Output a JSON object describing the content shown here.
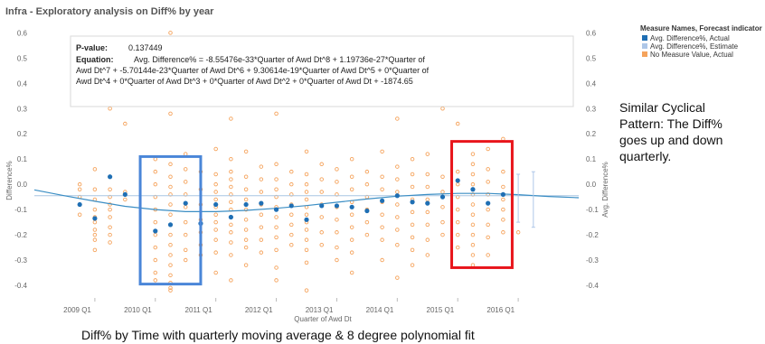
{
  "chart_data": {
    "type": "scatter",
    "title": "Infra - Exploratory analysis on Diff% by year",
    "xlabel": "Quarter of Awd Dt",
    "ylabel": "Difference%",
    "y2label": "Avg. Difference%",
    "ylim": [
      -0.45,
      0.63
    ],
    "xlim": [
      2008.0,
      2017.0
    ],
    "yticks": [
      "0.6",
      "0.5",
      "0.4",
      "0.3",
      "0.2",
      "0.1",
      "0.0",
      "-0.1",
      "-0.2",
      "-0.3",
      "-0.4"
    ],
    "xticks": [
      "2009 Q1",
      "2010 Q1",
      "2011 Q1",
      "2012 Q1",
      "2013 Q1",
      "2014 Q1",
      "2015 Q1",
      "2016 Q1"
    ],
    "grid": false,
    "legend": {
      "placement": "top-right",
      "title": "Measure Names, Forecast indicator",
      "entries": [
        {
          "label": "Avg. Difference%, Actual",
          "color": "#1f6fb4"
        },
        {
          "label": "Avg. Difference%, Estimate",
          "color": "#aec7e8"
        },
        {
          "label": "No Measure Value, Actual",
          "color": "#f5a35c"
        }
      ]
    },
    "trend": {
      "p_value_label": "P-value:",
      "p_value": "0.137449",
      "equation_label": "Equation:",
      "equation_lines": [
        "Avg. Difference% = -8.55476e-33*Quarter of Awd Dt^8 + 1.19736e-27*Quarter of",
        "Awd Dt^7 + -5.70144e-23*Quarter of Awd Dt^6 + 9.30614e-19*Quarter of Awd Dt^5 + 0*Quarter of",
        "Awd Dt^4 + 0*Quarter of Awd Dt^3 + 0*Quarter of Awd Dt^2 + 0*Quarter of Awd Dt + -1874.65"
      ],
      "fit_curve": [
        [
          2008.0,
          -0.022
        ],
        [
          2008.5,
          -0.045
        ],
        [
          2009.0,
          -0.067
        ],
        [
          2009.5,
          -0.087
        ],
        [
          2010.0,
          -0.1
        ],
        [
          2010.5,
          -0.108
        ],
        [
          2011.0,
          -0.108
        ],
        [
          2011.5,
          -0.103
        ],
        [
          2012.0,
          -0.095
        ],
        [
          2012.5,
          -0.084
        ],
        [
          2013.0,
          -0.071
        ],
        [
          2013.5,
          -0.058
        ],
        [
          2014.0,
          -0.047
        ],
        [
          2014.5,
          -0.04
        ],
        [
          2015.0,
          -0.036
        ],
        [
          2015.5,
          -0.036
        ],
        [
          2016.0,
          -0.041
        ],
        [
          2016.5,
          -0.048
        ],
        [
          2017.0,
          -0.053
        ]
      ]
    },
    "avg_line_y": -0.045,
    "avg_actual": [
      [
        2008.75,
        -0.08
      ],
      [
        2009.0,
        -0.135
      ],
      [
        2009.25,
        0.03
      ],
      [
        2009.5,
        -0.04
      ],
      [
        2010.0,
        -0.185
      ],
      [
        2010.25,
        -0.16
      ],
      [
        2010.5,
        -0.075
      ],
      [
        2010.75,
        -0.155
      ],
      [
        2011.0,
        -0.08
      ],
      [
        2011.25,
        -0.13
      ],
      [
        2011.5,
        -0.08
      ],
      [
        2011.75,
        -0.075
      ],
      [
        2012.0,
        -0.1
      ],
      [
        2012.25,
        -0.085
      ],
      [
        2012.5,
        -0.14
      ],
      [
        2012.75,
        -0.085
      ],
      [
        2013.0,
        -0.085
      ],
      [
        2013.25,
        -0.09
      ],
      [
        2013.5,
        -0.105
      ],
      [
        2013.75,
        -0.065
      ],
      [
        2014.0,
        -0.045
      ],
      [
        2014.25,
        -0.07
      ],
      [
        2014.5,
        -0.075
      ],
      [
        2014.75,
        -0.05
      ],
      [
        2015.0,
        0.015
      ],
      [
        2015.25,
        -0.02
      ],
      [
        2015.5,
        -0.075
      ],
      [
        2015.75,
        -0.04
      ]
    ],
    "estimate_intervals": [
      {
        "x": 2016.0,
        "low": -0.15,
        "high": 0.04
      },
      {
        "x": 2016.25,
        "low": -0.17,
        "high": 0.05
      }
    ],
    "points_per_quarter": [
      {
        "x": 2008.75,
        "values": [
          -0.02,
          -0.05,
          -0.08,
          -0.12,
          0.0
        ]
      },
      {
        "x": 2009.0,
        "values": [
          0.06,
          -0.02,
          -0.06,
          -0.1,
          -0.13,
          -0.15,
          -0.18,
          -0.2,
          -0.22,
          -0.26
        ]
      },
      {
        "x": 2009.25,
        "values": [
          0.3,
          0.03,
          -0.02,
          -0.05,
          -0.08,
          -0.1,
          -0.13,
          -0.17,
          -0.2,
          -0.23
        ]
      },
      {
        "x": 2009.5,
        "values": [
          0.24,
          -0.03,
          -0.06
        ]
      },
      {
        "x": 2010.0,
        "values": [
          0.1,
          0.05,
          0.0,
          -0.05,
          -0.1,
          -0.15,
          -0.2,
          -0.25,
          -0.3,
          -0.35,
          -0.38
        ]
      },
      {
        "x": 2010.25,
        "values": [
          0.6,
          0.28,
          0.08,
          0.03,
          -0.01,
          -0.04,
          -0.08,
          -0.12,
          -0.16,
          -0.2,
          -0.24,
          -0.28,
          -0.32,
          -0.36,
          -0.39,
          -0.41,
          -0.42
        ]
      },
      {
        "x": 2010.5,
        "values": [
          0.12,
          0.06,
          0.01,
          -0.04,
          -0.09,
          -0.15,
          -0.2,
          -0.26,
          -0.3
        ]
      },
      {
        "x": 2010.75,
        "values": [
          0.05,
          -0.02,
          -0.08,
          -0.14,
          -0.19,
          -0.24,
          -0.28
        ]
      },
      {
        "x": 2011.0,
        "values": [
          0.14,
          0.04,
          0.0,
          -0.03,
          -0.06,
          -0.09,
          -0.12,
          -0.15,
          -0.18,
          -0.22,
          -0.27,
          -0.35
        ]
      },
      {
        "x": 2011.25,
        "values": [
          0.26,
          0.1,
          0.05,
          0.02,
          -0.01,
          -0.04,
          -0.07,
          -0.1,
          -0.13,
          -0.16,
          -0.19,
          -0.23,
          -0.28,
          -0.38
        ]
      },
      {
        "x": 2011.5,
        "values": [
          0.13,
          0.03,
          -0.02,
          -0.06,
          -0.1,
          -0.14,
          -0.18,
          -0.22,
          -0.25,
          -0.32
        ]
      },
      {
        "x": 2011.75,
        "values": [
          0.07,
          0.02,
          -0.03,
          -0.08,
          -0.12,
          -0.17,
          -0.22,
          -0.27
        ]
      },
      {
        "x": 2012.0,
        "values": [
          0.28,
          0.08,
          0.02,
          -0.02,
          -0.05,
          -0.09,
          -0.13,
          -0.17,
          -0.21,
          -0.26,
          -0.33,
          -0.38
        ]
      },
      {
        "x": 2012.25,
        "values": [
          0.05,
          0.0,
          -0.04,
          -0.08,
          -0.12,
          -0.16,
          -0.2,
          -0.24
        ]
      },
      {
        "x": 2012.5,
        "values": [
          0.13,
          0.04,
          0.0,
          -0.03,
          -0.06,
          -0.09,
          -0.12,
          -0.15,
          -0.18,
          -0.22,
          -0.26,
          -0.31,
          -0.42
        ]
      },
      {
        "x": 2012.75,
        "values": [
          0.08,
          0.02,
          -0.03,
          -0.08,
          -0.13,
          -0.19,
          -0.24
        ]
      },
      {
        "x": 2013.0,
        "values": [
          0.34,
          0.06,
          0.01,
          -0.04,
          -0.09,
          -0.14,
          -0.19,
          -0.25,
          -0.3
        ]
      },
      {
        "x": 2013.25,
        "values": [
          0.1,
          0.03,
          -0.02,
          -0.07,
          -0.12,
          -0.17,
          -0.22,
          -0.27,
          -0.35
        ]
      },
      {
        "x": 2013.5,
        "values": [
          0.05,
          0.0,
          -0.05,
          -0.1,
          -0.15,
          -0.2
        ]
      },
      {
        "x": 2013.75,
        "values": [
          0.13,
          0.03,
          -0.02,
          -0.07,
          -0.12,
          -0.17,
          -0.22,
          -0.3
        ]
      },
      {
        "x": 2014.0,
        "values": [
          0.26,
          0.07,
          0.02,
          -0.03,
          -0.08,
          -0.13,
          -0.18,
          -0.24,
          -0.37
        ]
      },
      {
        "x": 2014.25,
        "values": [
          0.1,
          0.04,
          -0.01,
          -0.06,
          -0.11,
          -0.16,
          -0.21,
          -0.26,
          -0.32
        ]
      },
      {
        "x": 2014.5,
        "values": [
          0.12,
          0.04,
          -0.01,
          -0.06,
          -0.11,
          -0.16,
          -0.22,
          -0.28
        ]
      },
      {
        "x": 2014.75,
        "values": [
          0.3,
          0.03,
          -0.03,
          -0.09,
          -0.15,
          -0.2
        ]
      },
      {
        "x": 2015.0,
        "values": [
          0.35,
          0.24,
          0.05,
          0.0,
          -0.05,
          -0.1,
          -0.15,
          -0.2,
          -0.25
        ]
      },
      {
        "x": 2015.25,
        "values": [
          0.34,
          0.12,
          0.08,
          0.04,
          0.0,
          -0.04,
          -0.08,
          -0.12,
          -0.16,
          -0.2,
          -0.24,
          -0.28,
          -0.32
        ]
      },
      {
        "x": 2015.5,
        "values": [
          0.14,
          0.06,
          0.01,
          -0.04,
          -0.1,
          -0.16,
          -0.21,
          -0.28
        ]
      },
      {
        "x": 2015.75,
        "values": [
          0.18,
          0.05,
          -0.01,
          -0.06,
          -0.1,
          -0.14,
          -0.19
        ]
      },
      {
        "x": 2016.0,
        "values": [
          -0.19
        ]
      }
    ],
    "highlight_boxes": [
      {
        "x0": 2009.75,
        "x1": 2010.75,
        "y0": -0.395,
        "y1": 0.11,
        "color": "#4a86d8"
      },
      {
        "x0": 2014.9,
        "x1": 2015.9,
        "y0": -0.33,
        "y1": 0.17,
        "color": "#e8151b"
      }
    ]
  },
  "side_note": [
    "Similar Cyclical",
    "Pattern: The Diff%",
    "goes up and down",
    "quarterly."
  ],
  "caption": "Diff% by Time with quarterly moving average & 8 degree polynomial fit",
  "colors": {
    "avg_actual": "#1f6fb4",
    "estimate": "#aec7e8",
    "points": "#f5a35c",
    "fit_line": "#3b8ec4"
  }
}
